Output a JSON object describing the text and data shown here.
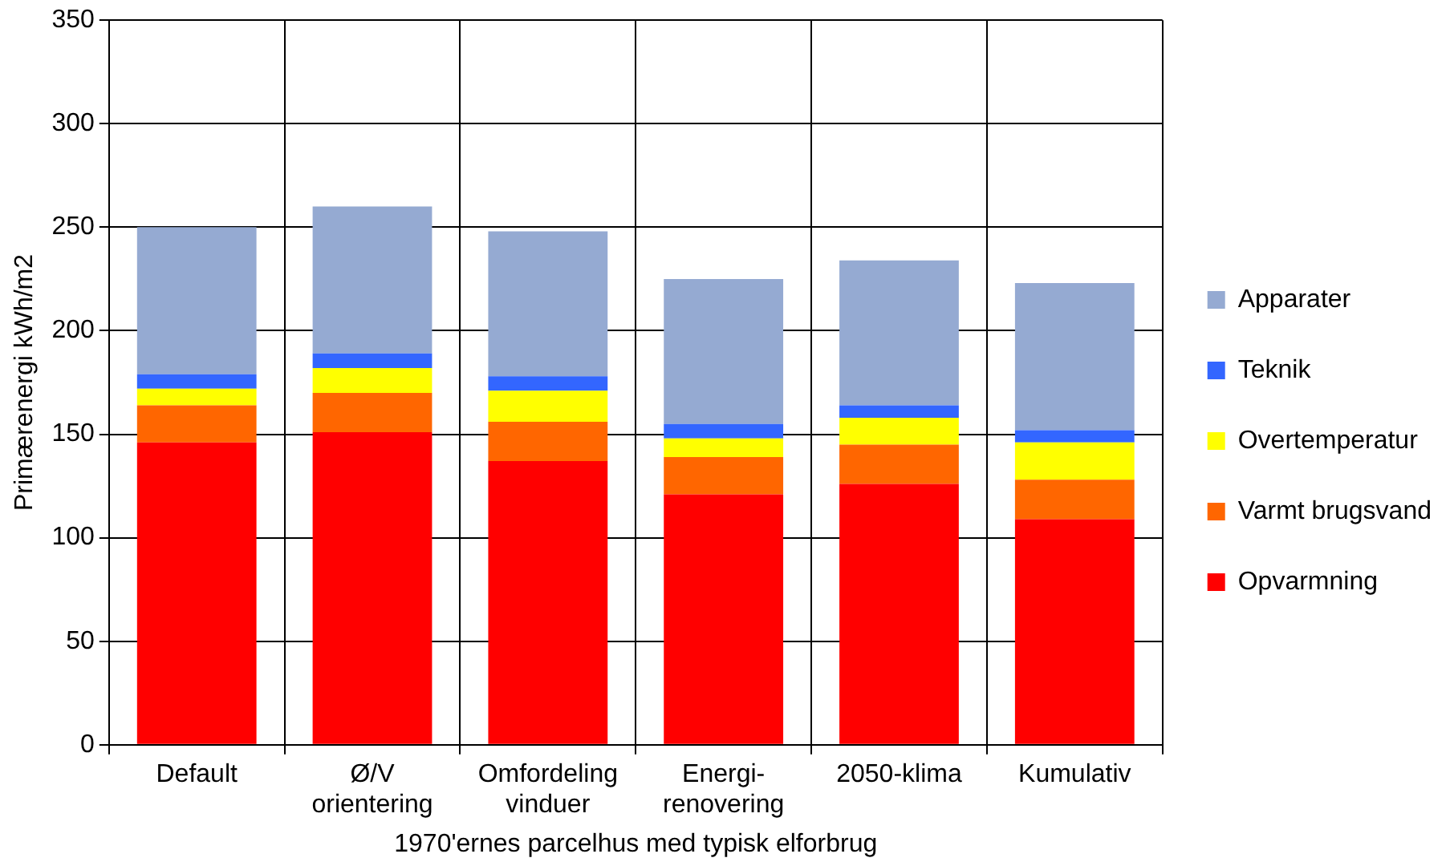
{
  "chart_data": {
    "type": "bar",
    "stacked": true,
    "categories": [
      "Default",
      "Ø/V\norientering",
      "Omfordeling\nvinduer",
      "Energi-\nrenovering",
      "2050-klima",
      "Kumulativ"
    ],
    "series": [
      {
        "name": "Opvarmning",
        "color": "#ff0000",
        "values": [
          146,
          151,
          137,
          121,
          126,
          109
        ]
      },
      {
        "name": "Varmt brugsvand",
        "color": "#ff6600",
        "values": [
          18,
          19,
          19,
          18,
          19,
          19
        ]
      },
      {
        "name": "Overtemperatur",
        "color": "#ffff00",
        "values": [
          8,
          12,
          15,
          9,
          13,
          18
        ]
      },
      {
        "name": "Teknik",
        "color": "#3366ff",
        "values": [
          7,
          7,
          7,
          7,
          6,
          6
        ]
      },
      {
        "name": "Apparater",
        "color": "#95aad2",
        "values": [
          71,
          71,
          70,
          70,
          70,
          71
        ]
      }
    ],
    "xlabel": "1970'ernes parcelhus med typisk elforbrug",
    "ylabel": "Primærenergi kWh/m2",
    "ylim": [
      0,
      350
    ],
    "yticks": [
      0,
      50,
      100,
      150,
      200,
      250,
      300,
      350
    ],
    "grid": true,
    "legend": "right"
  }
}
